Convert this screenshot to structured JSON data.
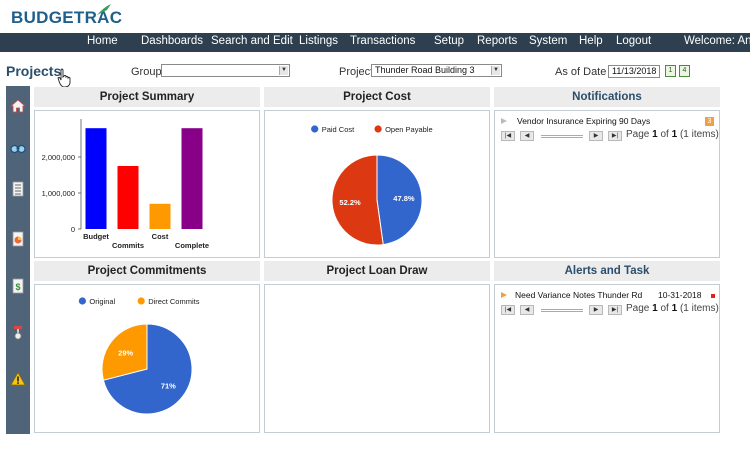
{
  "brand": {
    "name": "BUDGETRAC"
  },
  "nav": {
    "items": [
      "Home",
      "Dashboards",
      "Search and Edit",
      "Listings",
      "Transactions",
      "Setup",
      "Reports",
      "System",
      "Help",
      "Logout"
    ],
    "welcome": "Welcome: Anne"
  },
  "filters": {
    "page_title": "Projects",
    "group_label": "Group",
    "group_value": "",
    "project_label": "Project",
    "project_value": "Thunder Road Building 3",
    "asof_label": "As of Date",
    "asof_value": "11/13/2018"
  },
  "panels": {
    "summary": {
      "title": "Project Summary"
    },
    "cost": {
      "title": "Project Cost"
    },
    "notifications": {
      "title": "Notifications"
    },
    "commitments": {
      "title": "Project Commitments"
    },
    "loan": {
      "title": "Project Loan Draw"
    },
    "alerts": {
      "title": "Alerts and Task"
    }
  },
  "notifications": {
    "items": [
      {
        "text": "Vendor Insurance Expiring 90 Days",
        "count": "3"
      }
    ],
    "pager": {
      "prefix": "Page",
      "page": "1",
      "of": "of",
      "total": "1",
      "items": "(1 items)"
    }
  },
  "alerts": {
    "items": [
      {
        "text": "Need Variance Notes Thunder Rd",
        "date": "10-31-2018"
      }
    ],
    "pager": {
      "prefix": "Page",
      "page": "1",
      "of": "of",
      "total": "1",
      "items": "(1 items)"
    }
  },
  "rail_icons": [
    "home-icon",
    "binoculars-icon",
    "list-icon",
    "chart-doc-icon",
    "dollar-doc-icon",
    "scale-icon",
    "warning-icon"
  ],
  "chart_data": [
    {
      "type": "bar",
      "panel": "summary",
      "categories": [
        "Budget",
        "Commits",
        "Cost",
        "Complete"
      ],
      "values": [
        2800000,
        1750000,
        700000,
        2800000
      ],
      "colors": [
        "#0000ff",
        "#ff0000",
        "#ff9900",
        "#880088"
      ],
      "yticks": [
        0,
        1000000,
        2000000
      ],
      "ytick_labels": [
        "0",
        "1,000,000",
        "2,000,000"
      ],
      "ylim": [
        0,
        3000000
      ]
    },
    {
      "type": "pie",
      "panel": "cost",
      "labels": [
        "Paid Cost",
        "Open Payable"
      ],
      "values": [
        47.8,
        52.2
      ],
      "value_labels": [
        "47.8%",
        "52.2%"
      ],
      "colors": [
        "#3366cc",
        "#dc3912"
      ]
    },
    {
      "type": "pie",
      "panel": "commitments",
      "labels": [
        "Original",
        "Direct Commits"
      ],
      "values": [
        71,
        29
      ],
      "value_labels": [
        "71%",
        "29%"
      ],
      "colors": [
        "#3366cc",
        "#ff9900"
      ]
    }
  ]
}
